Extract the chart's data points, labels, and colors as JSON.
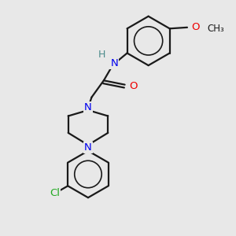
{
  "bg_color": "#e8e8e8",
  "bond_color": "#1a1a1a",
  "N_color": "#0000ee",
  "O_color": "#ee0000",
  "Cl_color": "#22aa22",
  "H_color": "#4a8a8a",
  "line_width": 1.6,
  "fig_size": [
    3.0,
    3.0
  ],
  "dpi": 100,
  "xlim": [
    0,
    10
  ],
  "ylim": [
    0,
    10
  ]
}
